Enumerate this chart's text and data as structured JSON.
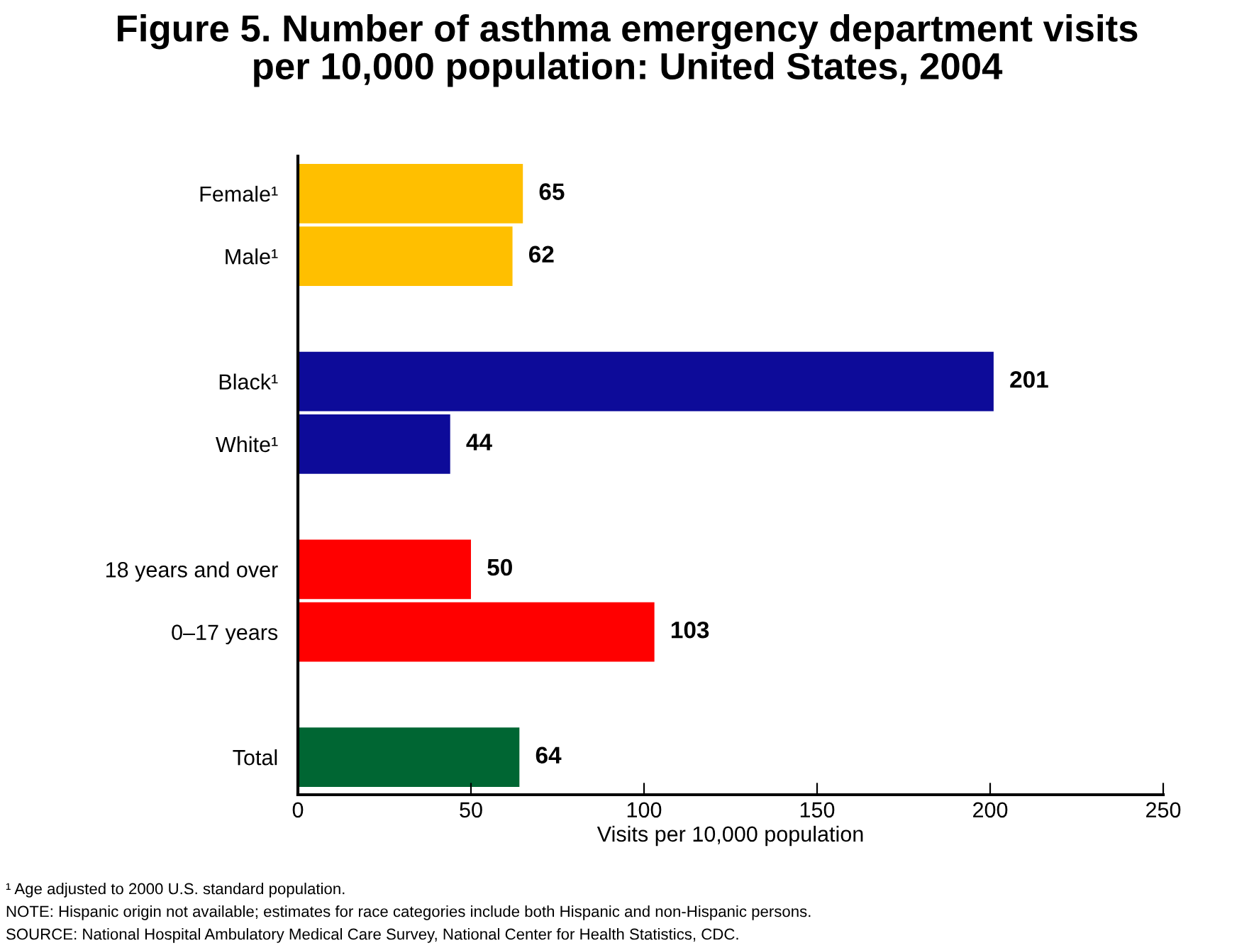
{
  "chart_data": {
    "type": "bar",
    "orientation": "horizontal",
    "title": "Figure 5. Number of asthma emergency department visits\nper 10,000 population: United States, 2004",
    "xlabel": "Visits per 10,000 population",
    "categories": [
      "Female¹",
      "Male¹",
      null,
      "Black¹",
      "White¹",
      null,
      "18 years and over",
      "0–17 years",
      null,
      "Total"
    ],
    "values": [
      65,
      62,
      null,
      201,
      44,
      null,
      50,
      103,
      null,
      64
    ],
    "colors": [
      "#ffbf00",
      "#ffbf00",
      null,
      "#0d0b99",
      "#0d0b99",
      null,
      "#ff0000",
      "#ff0000",
      null,
      "#006633"
    ],
    "data_labels": true,
    "xlim": [
      0,
      250
    ],
    "xticks": [
      0,
      50,
      100,
      150,
      200,
      250
    ],
    "grid": false,
    "legend": false,
    "annotations": [
      "¹ Age adjusted to 2000 U.S. standard population.",
      "NOTE: Hispanic origin not available; estimates for race categories include both Hispanic and non-Hispanic persons.",
      "SOURCE: National Hospital Ambulatory Medical Care Survey, National Center for Health Statistics, CDC."
    ]
  }
}
